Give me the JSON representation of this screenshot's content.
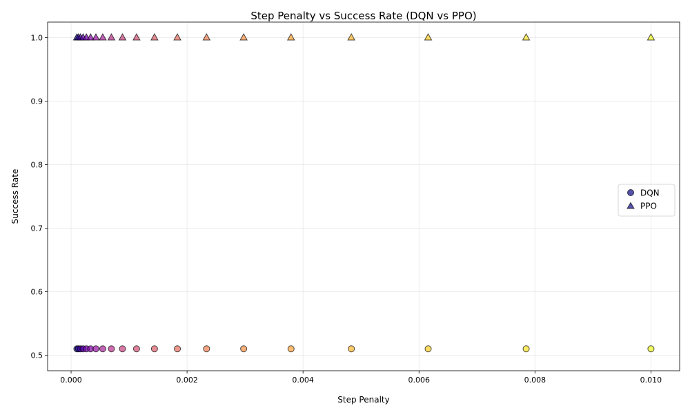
{
  "chart_data": {
    "type": "scatter",
    "title": "Step Penalty vs Success Rate (DQN vs PPO)",
    "xlabel": "Step Penalty",
    "ylabel": "Success Rate",
    "xlim": [
      -0.000405,
      0.010495
    ],
    "ylim": [
      0.4755,
      1.0245
    ],
    "xticks": [
      "0.000",
      "0.002",
      "0.004",
      "0.006",
      "0.008",
      "0.010"
    ],
    "xtick_values": [
      0.0,
      0.002,
      0.004,
      0.006,
      0.008,
      0.01
    ],
    "yticks": [
      "0.5",
      "0.6",
      "0.7",
      "0.8",
      "0.9",
      "1.0"
    ],
    "ytick_values": [
      0.5,
      0.6,
      0.7,
      0.8,
      0.9,
      1.0
    ],
    "grid": true,
    "legend_position": "center-right",
    "colormap": "plasma",
    "x": [
      0.0001,
      0.000127,
      0.000162,
      0.000207,
      0.000264,
      0.000336,
      0.000428,
      0.000546,
      0.000695,
      0.000886,
      0.001129,
      0.001438,
      0.001833,
      0.002336,
      0.002976,
      0.003793,
      0.004833,
      0.006158,
      0.007848,
      0.01
    ],
    "series": [
      {
        "name": "DQN",
        "marker": "circle",
        "values": [
          0.51,
          0.51,
          0.51,
          0.51,
          0.51,
          0.51,
          0.51,
          0.51,
          0.51,
          0.51,
          0.51,
          0.51,
          0.51,
          0.51,
          0.51,
          0.51,
          0.51,
          0.51,
          0.51,
          0.51
        ]
      },
      {
        "name": "PPO",
        "marker": "triangle",
        "values": [
          1.0,
          1.0,
          1.0,
          1.0,
          1.0,
          1.0,
          1.0,
          1.0,
          1.0,
          1.0,
          1.0,
          1.0,
          1.0,
          1.0,
          1.0,
          1.0,
          1.0,
          1.0,
          1.0,
          1.0
        ]
      }
    ],
    "point_colors": [
      "#0d0887",
      "#2c0594",
      "#43039e",
      "#5901a5",
      "#6e00a8",
      "#8305a7",
      "#9511a1",
      "#a72197",
      "#b6308b",
      "#c5407e",
      "#d14e72",
      "#dd5e66",
      "#e76e5b",
      "#f07f4f",
      "#f79044",
      "#fca338",
      "#feb72d",
      "#fccd25",
      "#f7e225",
      "#f0f921"
    ],
    "legend_color": "#0d0887"
  }
}
